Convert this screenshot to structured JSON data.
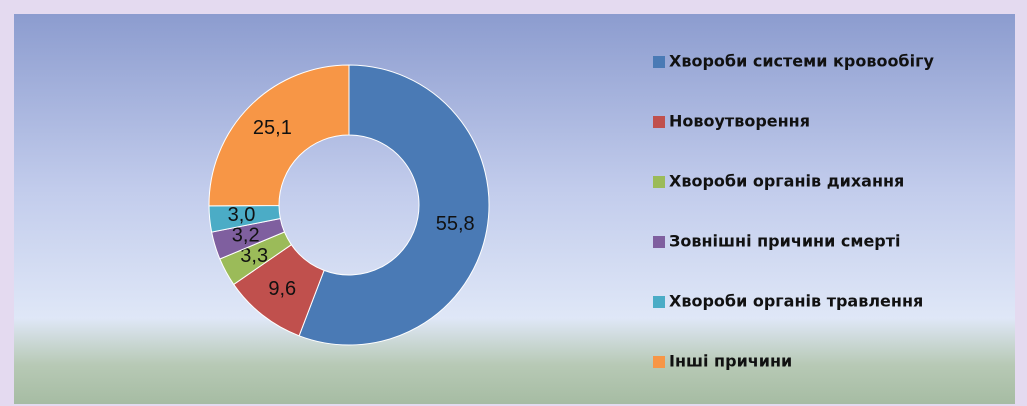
{
  "chart_data": {
    "type": "donut",
    "categories": [
      "Хвороби системи кровообігу",
      "Новоутворення",
      "Хвороби органів дихання",
      "Зовнішні причини смерті",
      "Хвороби органів травлення",
      "Інші причини"
    ],
    "values": [
      55.8,
      9.6,
      3.3,
      3.2,
      3.0,
      25.1
    ],
    "value_labels": [
      "55,8",
      "9,6",
      "3,3",
      "3,2",
      "3,0",
      "25,1"
    ],
    "colors": [
      "#4a7ab5",
      "#c0504d",
      "#9bbb59",
      "#7f5f9f",
      "#4bacc6",
      "#f79646"
    ]
  }
}
